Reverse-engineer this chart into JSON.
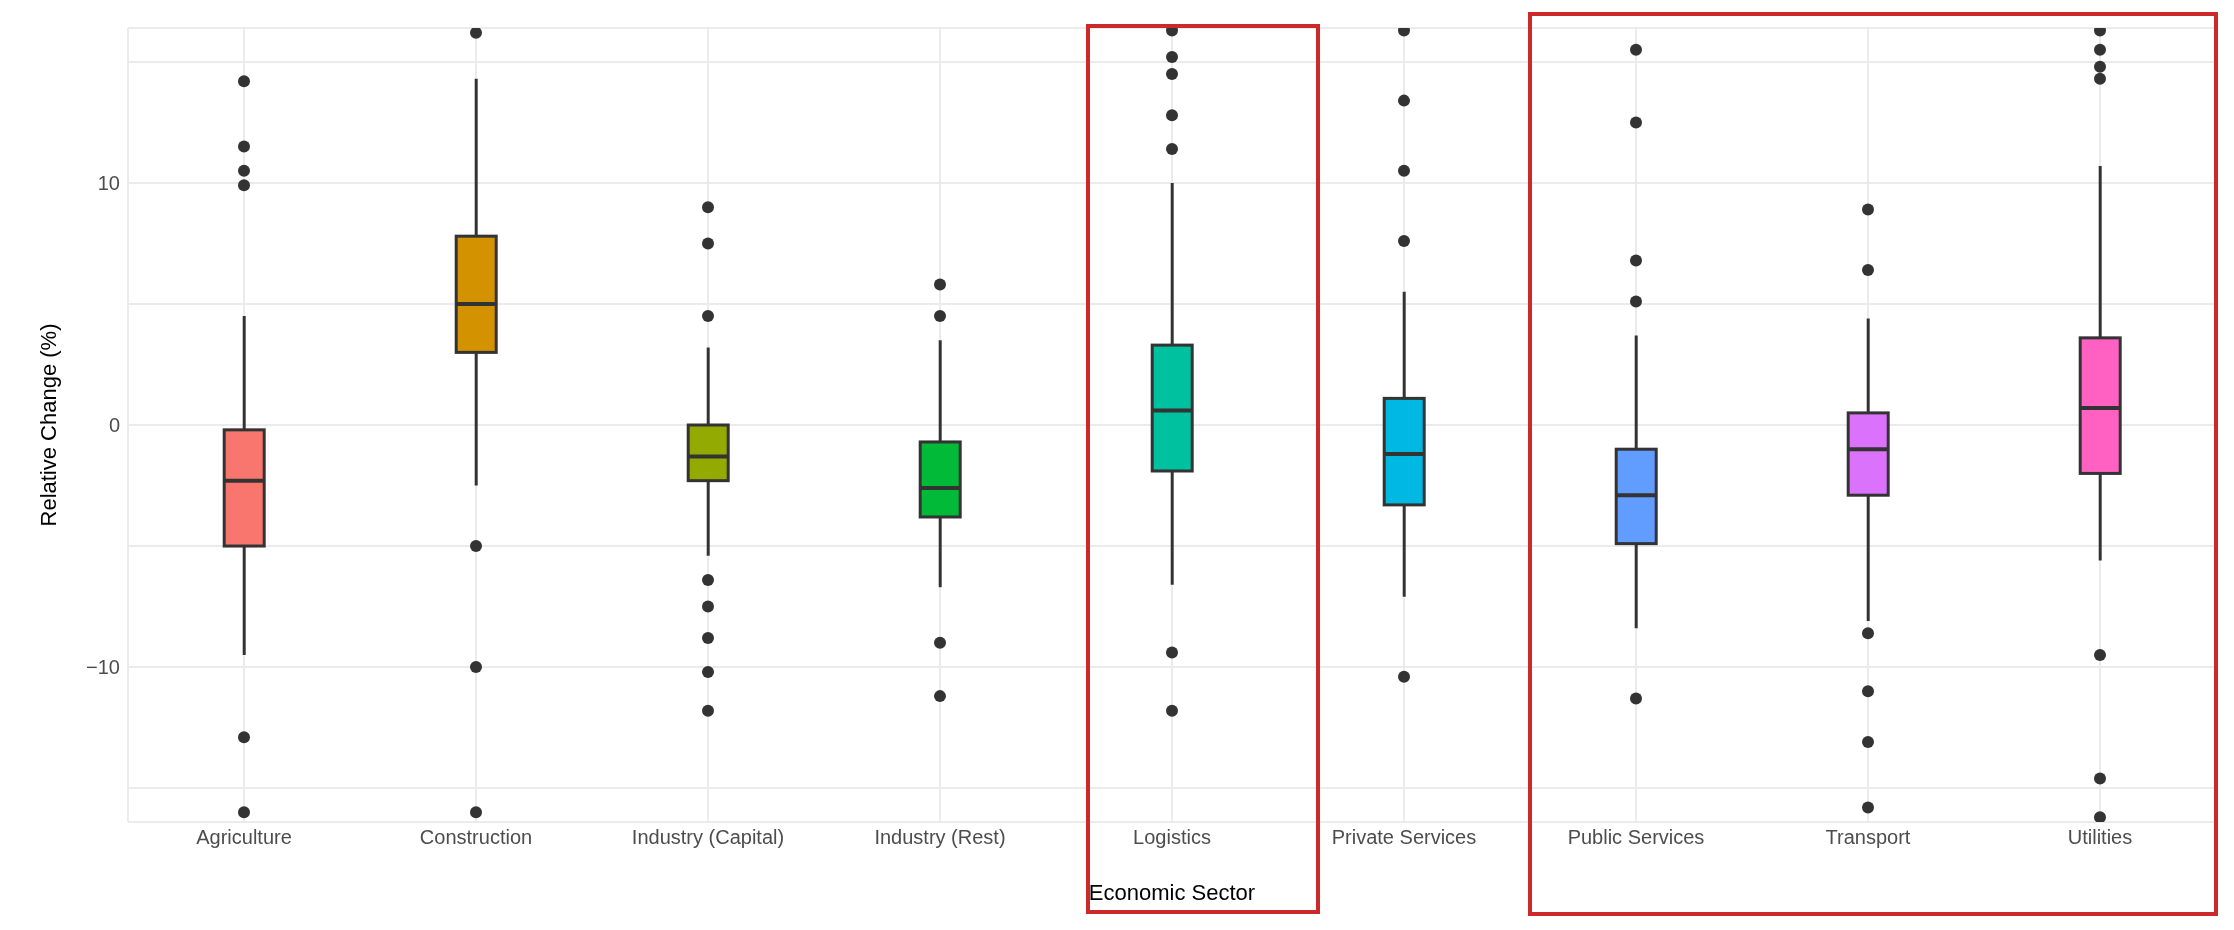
{
  "chart_data": {
    "type": "box",
    "xlabel": "Economic Sector",
    "ylabel": "Relative Change (%)",
    "categories": [
      "Agriculture",
      "Construction",
      "Industry (Capital)",
      "Industry (Rest)",
      "Logistics",
      "Private Services",
      "Public Services",
      "Transport",
      "Utilities"
    ],
    "colors": [
      "#f8766d",
      "#d39200",
      "#93aa00",
      "#00ba38",
      "#00c19f",
      "#00b9e3",
      "#619cff",
      "#db72fb",
      "#ff61c3"
    ],
    "boxes": [
      {
        "low": -9.5,
        "q1": -5.0,
        "median": -2.3,
        "q3": -0.2,
        "high": 4.5,
        "outliers": [
          14.2,
          11.5,
          10.5,
          9.9,
          -12.9,
          -16
        ]
      },
      {
        "low": -2.5,
        "q1": 3.0,
        "median": 5.0,
        "q3": 7.8,
        "high": 14.3,
        "outliers": [
          16.2,
          -5,
          -10,
          -16
        ]
      },
      {
        "low": -5.4,
        "q1": -2.3,
        "median": -1.3,
        "q3": 0.0,
        "high": 3.2,
        "outliers": [
          9.0,
          7.5,
          4.5,
          -6.4,
          -7.5,
          -8.8,
          -10.2,
          -11.8
        ]
      },
      {
        "low": -6.7,
        "q1": -3.8,
        "median": -2.6,
        "q3": -0.7,
        "high": 3.5,
        "outliers": [
          5.8,
          4.5,
          -9.0,
          -11.2
        ]
      },
      {
        "low": -6.6,
        "q1": -1.9,
        "median": 0.6,
        "q3": 3.3,
        "high": 10.0,
        "outliers": [
          16.3,
          15.2,
          14.5,
          12.8,
          11.4,
          -9.4,
          -11.8
        ]
      },
      {
        "low": -7.1,
        "q1": -3.3,
        "median": -1.2,
        "q3": 1.1,
        "high": 5.5,
        "outliers": [
          16.3,
          13.4,
          10.5,
          7.6,
          -10.4
        ]
      },
      {
        "low": -8.4,
        "q1": -4.9,
        "median": -2.9,
        "q3": -1.0,
        "high": 3.7,
        "outliers": [
          15.5,
          12.5,
          6.8,
          5.1,
          -11.3
        ]
      },
      {
        "low": -8.1,
        "q1": -2.9,
        "median": -1.0,
        "q3": 0.5,
        "high": 4.4,
        "outliers": [
          8.9,
          6.4,
          -8.6,
          -11.0,
          -13.1,
          -15.8
        ]
      },
      {
        "low": -5.6,
        "q1": -2.0,
        "median": 0.7,
        "q3": 3.6,
        "high": 10.7,
        "outliers": [
          16.3,
          15.5,
          14.8,
          14.3,
          -9.5,
          -14.6,
          -16.2
        ]
      }
    ],
    "ylim": [
      -16.4,
      16.4
    ],
    "yticks": [
      {
        "value": -15,
        "label": null
      },
      -10,
      {
        "value": -5,
        "label": null
      },
      0,
      {
        "value": 5,
        "label": null
      },
      10,
      {
        "value": 15,
        "label": null
      }
    ],
    "grid": true
  }
}
